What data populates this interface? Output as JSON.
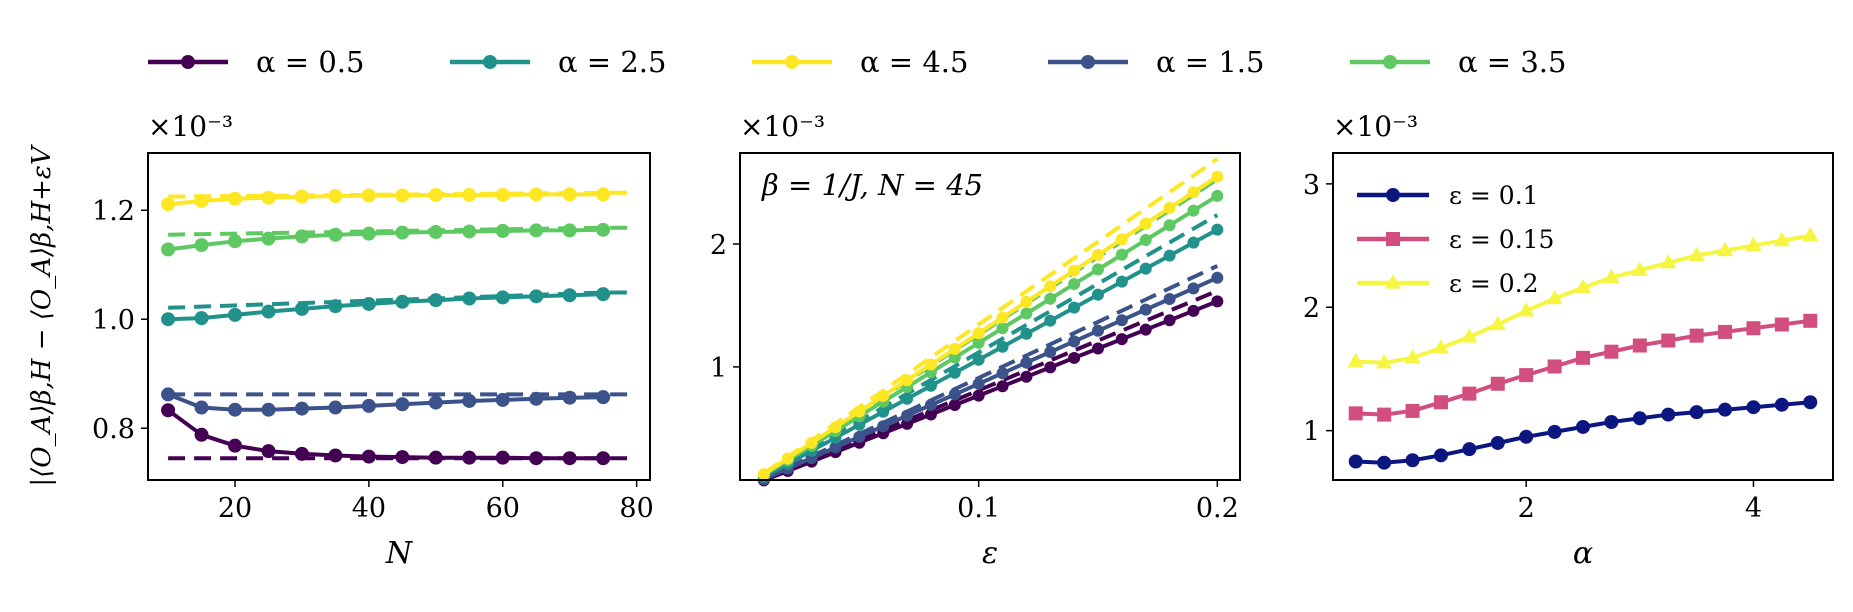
{
  "legend_top": [
    {
      "label": "α = 0.5",
      "color": "#440154"
    },
    {
      "label": "α = 2.5",
      "color": "#21918c"
    },
    {
      "label": "α = 4.5",
      "color": "#fde725"
    },
    {
      "label": "α = 1.5",
      "color": "#3b528b"
    },
    {
      "label": "α = 3.5",
      "color": "#5ec962"
    }
  ],
  "chart_data": [
    {
      "type": "line",
      "xlabel": "N",
      "ylabel": "|⟨O_A⟩β,H − ⟨O_A⟩β,H+εV",
      "multiplier": "×10⁻³",
      "xlim": [
        7,
        82
      ],
      "ylim": [
        0.705,
        1.305
      ],
      "xticks": [
        20,
        40,
        60,
        80
      ],
      "yticks": [
        0.8,
        1.0,
        1.2
      ],
      "xtick_labels": [
        "20",
        "40",
        "60",
        "80"
      ],
      "ytick_labels": [
        "0.8",
        "1.0",
        "1.2"
      ],
      "x": [
        10,
        15,
        20,
        25,
        30,
        35,
        40,
        45,
        50,
        55,
        60,
        65,
        70,
        75
      ],
      "series": [
        {
          "key": "a05",
          "color": "#440154",
          "values": [
            0.833,
            0.788,
            0.768,
            0.758,
            0.753,
            0.75,
            0.748,
            0.747,
            0.746,
            0.746,
            0.746,
            0.745,
            0.745,
            0.745
          ],
          "asymptote": 0.745
        },
        {
          "key": "a15",
          "color": "#3b528b",
          "values": [
            0.862,
            0.838,
            0.834,
            0.834,
            0.836,
            0.838,
            0.841,
            0.844,
            0.847,
            0.85,
            0.852,
            0.854,
            0.856,
            0.857
          ],
          "asymptote": 0.862
        },
        {
          "key": "a25",
          "color": "#21918c",
          "values": [
            1.0,
            1.002,
            1.008,
            1.014,
            1.019,
            1.024,
            1.028,
            1.032,
            1.035,
            1.038,
            1.04,
            1.042,
            1.044,
            1.046
          ],
          "asymptote": 1.049,
          "dash_from": 1.021
        },
        {
          "key": "a35",
          "color": "#5ec962",
          "values": [
            1.128,
            1.136,
            1.143,
            1.148,
            1.152,
            1.155,
            1.157,
            1.159,
            1.16,
            1.161,
            1.162,
            1.163,
            1.163,
            1.164
          ],
          "asymptote": 1.168,
          "dash_from": 1.155
        },
        {
          "key": "a45",
          "color": "#fde725",
          "values": [
            1.211,
            1.217,
            1.221,
            1.223,
            1.225,
            1.226,
            1.227,
            1.227,
            1.228,
            1.228,
            1.228,
            1.229,
            1.229,
            1.229
          ],
          "asymptote": 1.232,
          "dash_from": 1.225
        }
      ]
    },
    {
      "type": "line",
      "xlabel": "ε",
      "multiplier": "×10⁻³",
      "annotation": "β = 1/J,  N = 45",
      "xlim": [
        0.0,
        0.2095
      ],
      "ylim": [
        0.08,
        2.74
      ],
      "xticks": [
        0.1,
        0.2
      ],
      "yticks": [
        1,
        2
      ],
      "xtick_labels": [
        "0.1",
        "0.2"
      ],
      "ytick_labels": [
        "1",
        "2"
      ],
      "x": [
        0.01,
        0.02,
        0.03,
        0.04,
        0.05,
        0.06,
        0.07,
        0.08,
        0.09,
        0.1,
        0.11,
        0.12,
        0.13,
        0.14,
        0.15,
        0.16,
        0.17,
        0.18,
        0.19,
        0.2
      ],
      "series": [
        {
          "key": "a05",
          "color": "#440154",
          "slope": 0.00782
        },
        {
          "key": "a15",
          "color": "#3b528b",
          "slope": 0.0088
        },
        {
          "key": "a25",
          "color": "#21918c",
          "slope": 0.0108
        },
        {
          "key": "a35",
          "color": "#5ec962",
          "slope": 0.0122
        },
        {
          "key": "a45",
          "color": "#fde725",
          "slope": 0.013
        }
      ]
    },
    {
      "type": "line",
      "xlabel": "α",
      "multiplier": "×10⁻³",
      "xlim": [
        0.3,
        4.7
      ],
      "ylim": [
        0.6,
        3.25
      ],
      "xticks": [
        2,
        4
      ],
      "yticks": [
        1,
        2,
        3
      ],
      "xtick_labels": [
        "2",
        "4"
      ],
      "ytick_labels": [
        "1",
        "2",
        "3"
      ],
      "x": [
        0.5,
        0.75,
        1.0,
        1.25,
        1.5,
        1.75,
        2.0,
        2.25,
        2.5,
        2.75,
        3.0,
        3.25,
        3.5,
        3.75,
        4.0,
        4.25,
        4.5
      ],
      "legend": [
        {
          "label": "ε = 0.1",
          "color": "#0c1680",
          "marker": "circle"
        },
        {
          "label": "ε = 0.15",
          "color": "#d14e7e",
          "marker": "square"
        },
        {
          "label": "ε = 0.2",
          "color": "#f5f542",
          "marker": "triangle"
        }
      ],
      "series": [
        {
          "name": "ε = 0.1",
          "color": "#0c1680",
          "marker": "circle",
          "values": [
            0.75,
            0.74,
            0.76,
            0.8,
            0.85,
            0.9,
            0.95,
            0.99,
            1.03,
            1.07,
            1.1,
            1.13,
            1.15,
            1.17,
            1.19,
            1.21,
            1.23
          ]
        },
        {
          "name": "ε = 0.15",
          "color": "#d14e7e",
          "marker": "square",
          "values": [
            1.14,
            1.13,
            1.16,
            1.23,
            1.3,
            1.38,
            1.45,
            1.52,
            1.59,
            1.64,
            1.69,
            1.73,
            1.77,
            1.8,
            1.83,
            1.86,
            1.89
          ]
        },
        {
          "name": "ε = 0.2",
          "color": "#f5f542",
          "marker": "triangle",
          "values": [
            1.56,
            1.55,
            1.59,
            1.67,
            1.76,
            1.86,
            1.97,
            2.07,
            2.16,
            2.24,
            2.3,
            2.36,
            2.42,
            2.46,
            2.5,
            2.54,
            2.58
          ]
        }
      ]
    }
  ]
}
